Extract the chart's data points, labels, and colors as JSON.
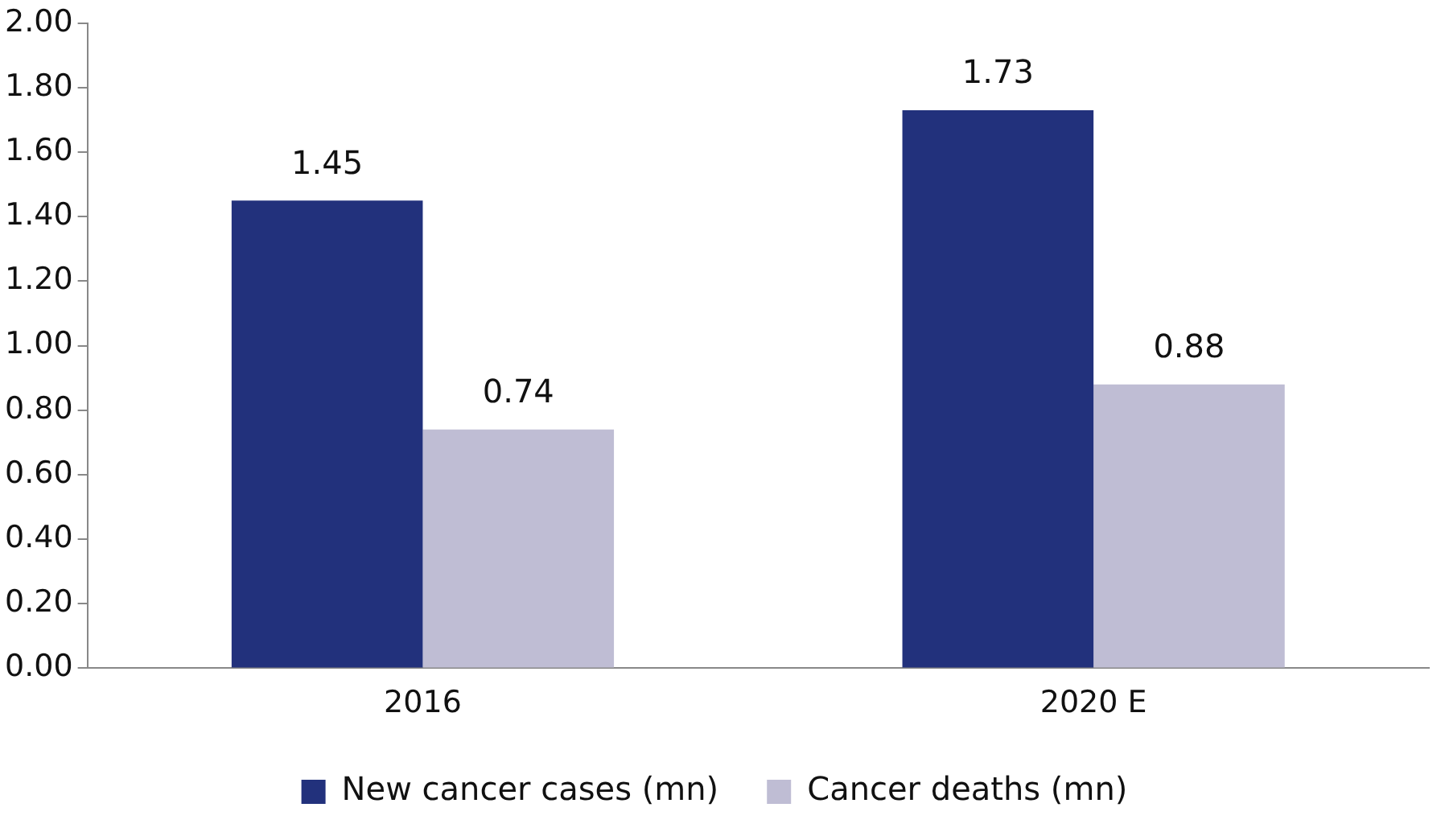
{
  "chart_data": {
    "type": "bar",
    "categories": [
      "2016",
      "2020 E"
    ],
    "series": [
      {
        "name": "New cancer cases (mn)",
        "color": "#22317c",
        "values": [
          1.45,
          1.73
        ]
      },
      {
        "name": "Cancer deaths (mn)",
        "color": "#bfbdd4",
        "values": [
          0.74,
          0.88
        ]
      }
    ],
    "ylim": [
      0,
      2
    ],
    "yticks": [
      {
        "value": 0,
        "label": "0.00"
      },
      {
        "value": 0.2,
        "label": "0.20"
      },
      {
        "value": 0.4,
        "label": "0.40"
      },
      {
        "value": 0.6,
        "label": "0.60"
      },
      {
        "value": 0.8,
        "label": "0.80"
      },
      {
        "value": 1,
        "label": "1.00"
      },
      {
        "value": 1.2,
        "label": "1.20"
      },
      {
        "value": 1.4,
        "label": "1.40"
      },
      {
        "value": 1.6,
        "label": "1.60"
      },
      {
        "value": 1.8,
        "label": "1.80"
      },
      {
        "value": 2,
        "label": "2.00"
      }
    ],
    "data_labels": true,
    "grid": false,
    "legend": "bottom"
  }
}
